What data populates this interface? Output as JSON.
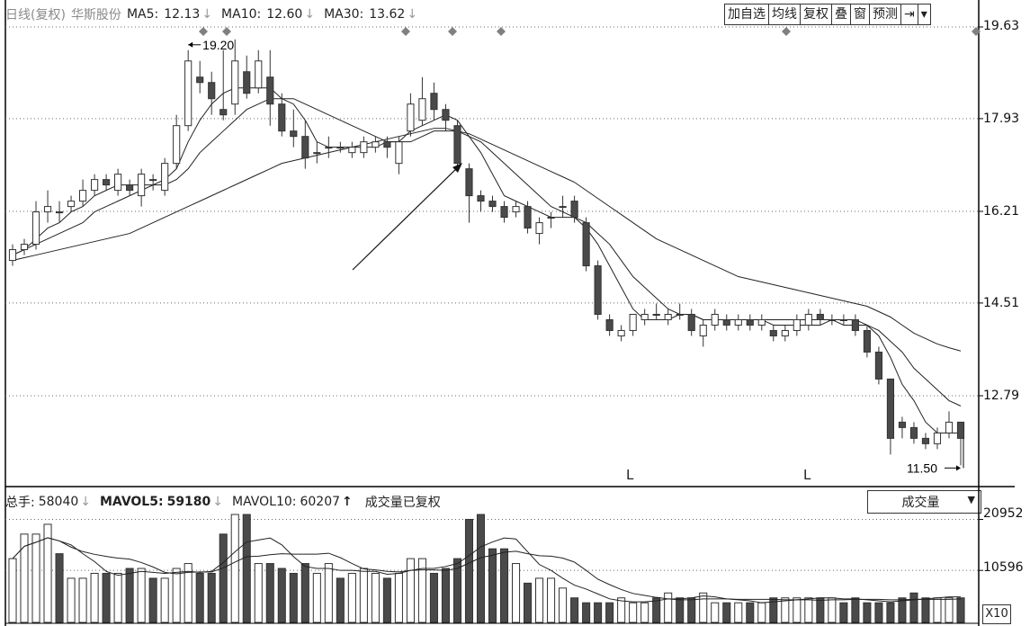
{
  "header": {
    "period": "日线(复权)",
    "stock_name": "华斯股份",
    "ma5_label": "MA5:",
    "ma5_value": "12.13",
    "ma10_label": "MA10:",
    "ma10_value": "12.60",
    "ma30_label": "MA30:",
    "ma30_value": "13.62",
    "down_arrow": "↓"
  },
  "toolbar": {
    "add_watch": "加自选",
    "ma_line": "均线",
    "restore_right": "复权",
    "overlay": "叠",
    "window": "窗",
    "forecast": "预测",
    "jump": "⇥",
    "more": "▾"
  },
  "price_axis": [
    "19.63",
    "17.93",
    "16.21",
    "14.51",
    "12.79"
  ],
  "annotations": {
    "high": "19.20",
    "low": "11.50",
    "l_mark": "L"
  },
  "volume_header": {
    "total_label": "总手:",
    "total_value": "58040",
    "mavol5_label": "MAVOL5:",
    "mavol5_value": "59180",
    "mavol10_label": "MAVOL10:",
    "mavol10_value": "60207",
    "up_arrow": "↑",
    "note": "成交量已复权"
  },
  "volume_select": {
    "selected": "成交量",
    "chevron": "▼"
  },
  "volume_axis": [
    "20952",
    "10596"
  ],
  "volume_unit": "X10",
  "colors": {
    "up": "#ffffff",
    "down": "#4a4a4a",
    "line": "#222222",
    "grid": "#6a6a6a",
    "marker": "#808080"
  },
  "chart_data": {
    "type": "candlestick",
    "ylim": [
      11.0,
      19.63
    ],
    "candles": [
      [
        15.3,
        15.5,
        15.2,
        15.6
      ],
      [
        15.5,
        15.6,
        15.4,
        15.7
      ],
      [
        15.6,
        16.2,
        15.5,
        16.4
      ],
      [
        16.2,
        16.3,
        16.0,
        16.6
      ],
      [
        16.2,
        16.2,
        16.0,
        16.4
      ],
      [
        16.3,
        16.4,
        16.2,
        16.5
      ],
      [
        16.4,
        16.6,
        16.3,
        16.8
      ],
      [
        16.6,
        16.8,
        16.5,
        16.9
      ],
      [
        16.8,
        16.7,
        16.6,
        16.9
      ],
      [
        16.6,
        16.9,
        16.5,
        17.0
      ],
      [
        16.7,
        16.6,
        16.5,
        16.8
      ],
      [
        16.5,
        16.9,
        16.3,
        17.0
      ],
      [
        16.8,
        16.8,
        16.6,
        16.9
      ],
      [
        16.6,
        17.1,
        16.5,
        17.2
      ],
      [
        17.1,
        17.8,
        17.0,
        18.0
      ],
      [
        17.8,
        19.0,
        17.7,
        19.2
      ],
      [
        18.7,
        18.6,
        18.4,
        19.0
      ],
      [
        18.6,
        18.3,
        18.0,
        18.8
      ],
      [
        18.1,
        18.0,
        17.9,
        19.2
      ],
      [
        18.2,
        19.0,
        18.0,
        19.4
      ],
      [
        18.8,
        18.4,
        18.3,
        19.1
      ],
      [
        18.5,
        19.0,
        18.4,
        19.2
      ],
      [
        18.7,
        18.2,
        17.8,
        19.2
      ],
      [
        18.2,
        17.7,
        17.6,
        18.4
      ],
      [
        17.7,
        17.6,
        17.4,
        18.1
      ],
      [
        17.6,
        17.2,
        17.0,
        17.9
      ],
      [
        17.3,
        17.3,
        17.1,
        17.5
      ],
      [
        17.4,
        17.4,
        17.2,
        17.6
      ],
      [
        17.4,
        17.4,
        17.3,
        17.5
      ],
      [
        17.3,
        17.4,
        17.2,
        17.5
      ],
      [
        17.3,
        17.5,
        17.2,
        17.6
      ],
      [
        17.4,
        17.5,
        17.3,
        17.6
      ],
      [
        17.5,
        17.4,
        17.2,
        17.6
      ],
      [
        17.1,
        17.5,
        16.9,
        17.6
      ],
      [
        17.7,
        18.2,
        17.6,
        18.4
      ],
      [
        17.9,
        18.3,
        17.8,
        18.7
      ],
      [
        18.4,
        18.1,
        17.9,
        18.6
      ],
      [
        18.1,
        17.9,
        17.7,
        18.2
      ],
      [
        17.8,
        17.1,
        17.0,
        17.9
      ],
      [
        17.0,
        16.5,
        16.0,
        17.1
      ],
      [
        16.5,
        16.4,
        16.2,
        16.6
      ],
      [
        16.4,
        16.3,
        16.2,
        16.5
      ],
      [
        16.3,
        16.1,
        16.0,
        16.4
      ],
      [
        16.2,
        16.3,
        16.1,
        16.4
      ],
      [
        16.3,
        15.9,
        15.8,
        16.4
      ],
      [
        15.8,
        16.0,
        15.6,
        16.1
      ],
      [
        16.1,
        16.1,
        15.9,
        16.2
      ],
      [
        16.3,
        16.3,
        16.1,
        16.5
      ],
      [
        16.4,
        16.1,
        16.0,
        16.5
      ],
      [
        16.0,
        15.2,
        15.1,
        16.1
      ],
      [
        15.2,
        14.3,
        14.2,
        15.3
      ],
      [
        14.2,
        14.0,
        13.9,
        14.3
      ],
      [
        13.9,
        14.0,
        13.8,
        14.1
      ],
      [
        14.0,
        14.3,
        13.9,
        14.3
      ],
      [
        14.2,
        14.3,
        14.1,
        14.4
      ],
      [
        14.3,
        14.3,
        14.2,
        14.5
      ],
      [
        14.2,
        14.3,
        14.1,
        14.4
      ],
      [
        14.3,
        14.3,
        14.2,
        14.5
      ],
      [
        14.3,
        14.0,
        13.9,
        14.4
      ],
      [
        13.9,
        14.1,
        13.7,
        14.2
      ],
      [
        14.1,
        14.3,
        14.0,
        14.4
      ],
      [
        14.2,
        14.1,
        14.0,
        14.3
      ],
      [
        14.1,
        14.2,
        14.0,
        14.3
      ],
      [
        14.2,
        14.1,
        14.0,
        14.3
      ],
      [
        14.1,
        14.2,
        14.0,
        14.3
      ],
      [
        14.0,
        13.9,
        13.8,
        14.1
      ],
      [
        13.9,
        14.0,
        13.8,
        14.1
      ],
      [
        14.0,
        14.2,
        13.9,
        14.3
      ],
      [
        14.1,
        14.3,
        14.0,
        14.4
      ],
      [
        14.3,
        14.2,
        14.1,
        14.4
      ],
      [
        14.2,
        14.2,
        14.1,
        14.3
      ],
      [
        14.2,
        14.2,
        14.1,
        14.3
      ],
      [
        14.2,
        14.0,
        13.9,
        14.3
      ],
      [
        14.0,
        13.6,
        13.5,
        14.1
      ],
      [
        13.6,
        13.1,
        13.0,
        13.7
      ],
      [
        13.1,
        12.0,
        11.7,
        13.1
      ],
      [
        12.3,
        12.2,
        12.0,
        12.4
      ],
      [
        12.2,
        12.0,
        11.9,
        12.3
      ],
      [
        12.0,
        11.9,
        11.8,
        12.1
      ],
      [
        11.9,
        12.1,
        11.8,
        12.2
      ],
      [
        12.1,
        12.3,
        12.0,
        12.5
      ],
      [
        12.3,
        12.0,
        11.5,
        12.3
      ]
    ],
    "ma5": [
      15.4,
      15.5,
      15.7,
      15.9,
      16.0,
      16.2,
      16.3,
      16.5,
      16.6,
      16.7,
      16.7,
      16.7,
      16.7,
      16.8,
      17.0,
      17.5,
      17.9,
      18.2,
      18.4,
      18.5,
      18.5,
      18.5,
      18.5,
      18.3,
      18.2,
      17.9,
      17.5,
      17.4,
      17.4,
      17.4,
      17.4,
      17.4,
      17.5,
      17.5,
      17.7,
      17.8,
      17.9,
      18.0,
      17.9,
      17.6,
      17.3,
      16.9,
      16.5,
      16.4,
      16.3,
      16.2,
      16.1,
      16.1,
      16.1,
      15.9,
      15.6,
      15.2,
      14.8,
      14.4,
      14.2,
      14.2,
      14.2,
      14.3,
      14.3,
      14.2,
      14.2,
      14.2,
      14.2,
      14.2,
      14.2,
      14.1,
      14.1,
      14.1,
      14.1,
      14.1,
      14.2,
      14.2,
      14.2,
      14.1,
      13.9,
      13.5,
      13.0,
      12.7,
      12.3,
      12.1,
      12.1,
      12.1
    ],
    "ma10": [
      15.4,
      15.5,
      15.6,
      15.7,
      15.8,
      15.9,
      16.0,
      16.2,
      16.3,
      16.4,
      16.5,
      16.6,
      16.7,
      16.7,
      16.8,
      17.0,
      17.3,
      17.5,
      17.7,
      17.9,
      18.1,
      18.2,
      18.3,
      18.3,
      18.3,
      18.2,
      18.1,
      18.0,
      17.9,
      17.8,
      17.7,
      17.6,
      17.5,
      17.5,
      17.5,
      17.6,
      17.7,
      17.7,
      17.7,
      17.6,
      17.5,
      17.3,
      17.1,
      16.9,
      16.7,
      16.5,
      16.3,
      16.2,
      16.1,
      16.0,
      15.8,
      15.6,
      15.3,
      15.0,
      14.8,
      14.6,
      14.4,
      14.3,
      14.3,
      14.2,
      14.2,
      14.2,
      14.2,
      14.2,
      14.2,
      14.2,
      14.2,
      14.2,
      14.2,
      14.2,
      14.2,
      14.1,
      14.1,
      14.1,
      14.0,
      13.8,
      13.6,
      13.3,
      13.1,
      12.9,
      12.7,
      12.6
    ],
    "ma30": [
      15.3,
      15.35,
      15.4,
      15.45,
      15.5,
      15.55,
      15.6,
      15.65,
      15.7,
      15.75,
      15.8,
      15.9,
      16.0,
      16.1,
      16.2,
      16.3,
      16.4,
      16.5,
      16.6,
      16.7,
      16.8,
      16.9,
      17.0,
      17.1,
      17.15,
      17.2,
      17.25,
      17.3,
      17.35,
      17.4,
      17.45,
      17.5,
      17.55,
      17.6,
      17.65,
      17.7,
      17.75,
      17.75,
      17.7,
      17.65,
      17.55,
      17.45,
      17.35,
      17.25,
      17.15,
      17.05,
      16.95,
      16.85,
      16.75,
      16.6,
      16.45,
      16.3,
      16.15,
      16.0,
      15.85,
      15.7,
      15.6,
      15.5,
      15.4,
      15.3,
      15.2,
      15.1,
      15.0,
      14.95,
      14.9,
      14.85,
      14.8,
      14.75,
      14.7,
      14.65,
      14.6,
      14.55,
      14.5,
      14.45,
      14.35,
      14.25,
      14.1,
      13.95,
      13.85,
      13.75,
      13.68,
      13.62
    ],
    "volumes": [
      13,
      18,
      18,
      20,
      14,
      9,
      9,
      10,
      10,
      10,
      11,
      11,
      9,
      9,
      11,
      12,
      10,
      10,
      18,
      22,
      22,
      12,
      12,
      11,
      10,
      12,
      10,
      12,
      9,
      10,
      11,
      10,
      9,
      10,
      13,
      13,
      10,
      11,
      13,
      21,
      22,
      15,
      15,
      12,
      8,
      9,
      9,
      7,
      5,
      4,
      4,
      4,
      5,
      4,
      4,
      5,
      6,
      5,
      5,
      6,
      4,
      4,
      4,
      4,
      4,
      5,
      5,
      5,
      5,
      5,
      5,
      4,
      5,
      4,
      4,
      4,
      5,
      6,
      5,
      5,
      5,
      5
    ],
    "volume_up": [
      1,
      1,
      1,
      1,
      0,
      1,
      1,
      1,
      0,
      1,
      0,
      1,
      0,
      1,
      1,
      1,
      0,
      0,
      0,
      1,
      0,
      1,
      0,
      0,
      0,
      0,
      1,
      1,
      0,
      1,
      1,
      1,
      0,
      1,
      1,
      1,
      0,
      0,
      0,
      0,
      0,
      0,
      0,
      1,
      0,
      1,
      1,
      1,
      0,
      0,
      0,
      0,
      1,
      1,
      1,
      0,
      1,
      0,
      0,
      1,
      1,
      0,
      1,
      0,
      1,
      0,
      1,
      1,
      1,
      0,
      1,
      0,
      0,
      0,
      0,
      0,
      0,
      0,
      0,
      1,
      1,
      0
    ],
    "vol_ylim": [
      0,
      22
    ]
  }
}
